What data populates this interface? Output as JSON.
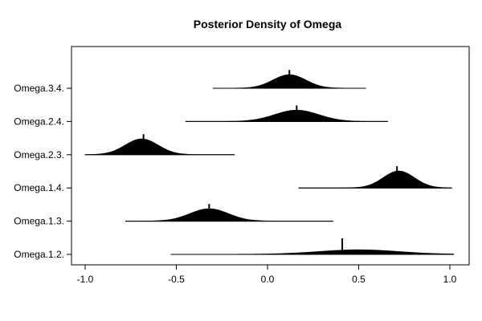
{
  "chart_data": {
    "type": "area",
    "title": "Posterior Density of Omega",
    "xlabel": "",
    "ylabel": "",
    "xlim": [
      -1.1,
      1.1
    ],
    "x_ticks": [
      -1.0,
      -0.5,
      0.0,
      0.5,
      1.0
    ],
    "x_tick_labels": [
      "-1.0",
      "-0.5",
      "0.0",
      "0.5",
      "1.0"
    ],
    "categories": [
      "Omega.1.2.",
      "Omega.1.3.",
      "Omega.1.4.",
      "Omega.2.3.",
      "Omega.2.4.",
      "Omega.3.4."
    ],
    "series": [
      {
        "name": "Omega.1.2.",
        "range": [
          -0.53,
          1.02
        ],
        "mode": 0.5,
        "sd": 0.22,
        "height": 0.2,
        "median": 0.41
      },
      {
        "name": "Omega.1.3.",
        "range": [
          -0.78,
          0.36
        ],
        "mode": -0.32,
        "sd": 0.105,
        "height": 0.55,
        "median": -0.32
      },
      {
        "name": "Omega.1.4.",
        "range": [
          0.17,
          1.01
        ],
        "mode": 0.72,
        "sd": 0.085,
        "height": 0.75,
        "median": 0.71
      },
      {
        "name": "Omega.2.3.",
        "range": [
          -1.0,
          -0.18
        ],
        "mode": -0.69,
        "sd": 0.09,
        "height": 0.7,
        "median": -0.68
      },
      {
        "name": "Omega.2.4.",
        "range": [
          -0.45,
          0.66
        ],
        "mode": 0.16,
        "sd": 0.12,
        "height": 0.5,
        "median": 0.16
      },
      {
        "name": "Omega.3.4.",
        "range": [
          -0.3,
          0.54
        ],
        "mode": 0.12,
        "sd": 0.09,
        "height": 0.6,
        "median": 0.12
      }
    ],
    "grid": false,
    "legend": "none"
  }
}
